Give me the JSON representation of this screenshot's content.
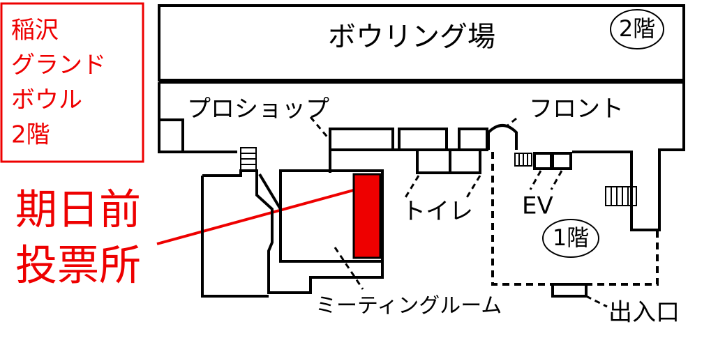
{
  "sidebar": {
    "lines": [
      "稲沢",
      "グランド",
      "ボウル",
      "2階"
    ]
  },
  "callout": {
    "lines": [
      "期日前",
      "投票所"
    ]
  },
  "map": {
    "bowling": "ボウリング場",
    "floor2": "2階",
    "pro_shop": "プロショップ",
    "front": "フロント",
    "toilet": "トイレ",
    "ev": "EV",
    "floor1": "1階",
    "meeting_room": "ミーティングルーム",
    "entrance": "出入口"
  }
}
